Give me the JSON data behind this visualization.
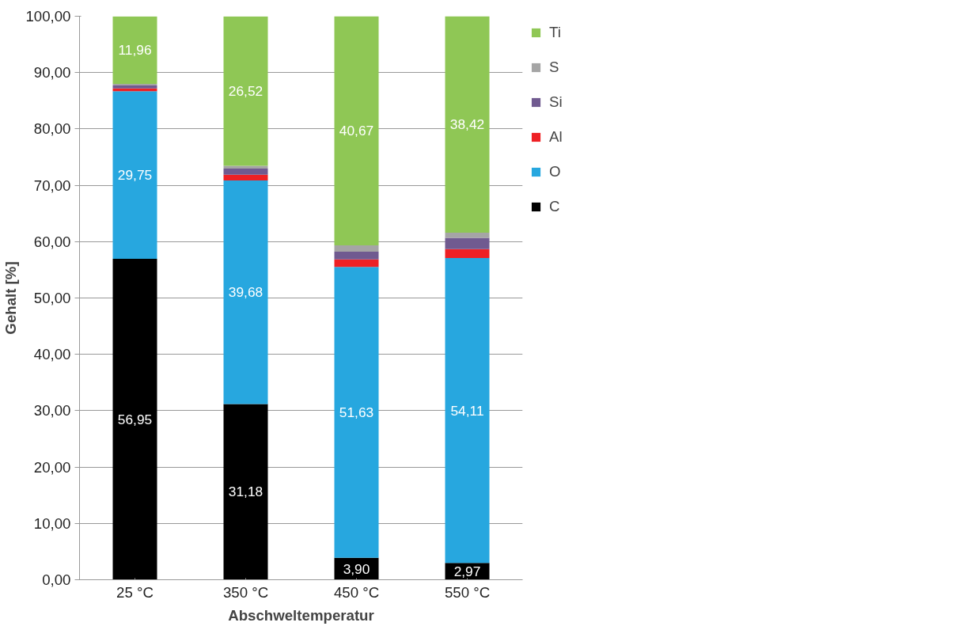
{
  "chart_data": {
    "type": "bar",
    "stacked": true,
    "xlabel": "Abschweltemperatur",
    "ylabel": "Gehalt [%]",
    "categories": [
      "25 °C",
      "350 °C",
      "450 °C",
      "550 °C"
    ],
    "series": [
      {
        "name": "C",
        "color": "#000000",
        "values": [
          56.95,
          31.18,
          3.9,
          2.97
        ],
        "value_labels": [
          "56,95",
          "31,18",
          "3,90",
          "2,97"
        ]
      },
      {
        "name": "O",
        "color": "#27a7df",
        "values": [
          29.75,
          39.68,
          51.63,
          54.11
        ],
        "value_labels": [
          "29,75",
          "39,68",
          "51,63",
          "54,11"
        ]
      },
      {
        "name": "Al",
        "color": "#ee2024",
        "values": [
          0.5,
          1.0,
          1.3,
          1.6
        ]
      },
      {
        "name": "Si",
        "color": "#705a90",
        "values": [
          0.5,
          1.1,
          1.4,
          2.0
        ]
      },
      {
        "name": "S",
        "color": "#a5a5a5",
        "values": [
          0.3,
          0.5,
          1.1,
          0.9
        ]
      },
      {
        "name": "Ti",
        "color": "#8fc755",
        "values": [
          11.96,
          26.52,
          40.67,
          38.42
        ],
        "value_labels": [
          "11,96",
          "26,52",
          "40,67",
          "38,42"
        ]
      }
    ],
    "ylim": [
      0,
      100
    ],
    "yticks": [
      {
        "value": 0,
        "label": "0,00"
      },
      {
        "value": 10,
        "label": "10,00"
      },
      {
        "value": 20,
        "label": "20,00"
      },
      {
        "value": 30,
        "label": "30,00"
      },
      {
        "value": 40,
        "label": "40,00"
      },
      {
        "value": 50,
        "label": "50,00"
      },
      {
        "value": 60,
        "label": "60,00"
      },
      {
        "value": 70,
        "label": "70,00"
      },
      {
        "value": 80,
        "label": "80,00"
      },
      {
        "value": 90,
        "label": "90,00"
      },
      {
        "value": 100,
        "label": "100,00"
      }
    ],
    "grid": "y",
    "legend": "right"
  }
}
